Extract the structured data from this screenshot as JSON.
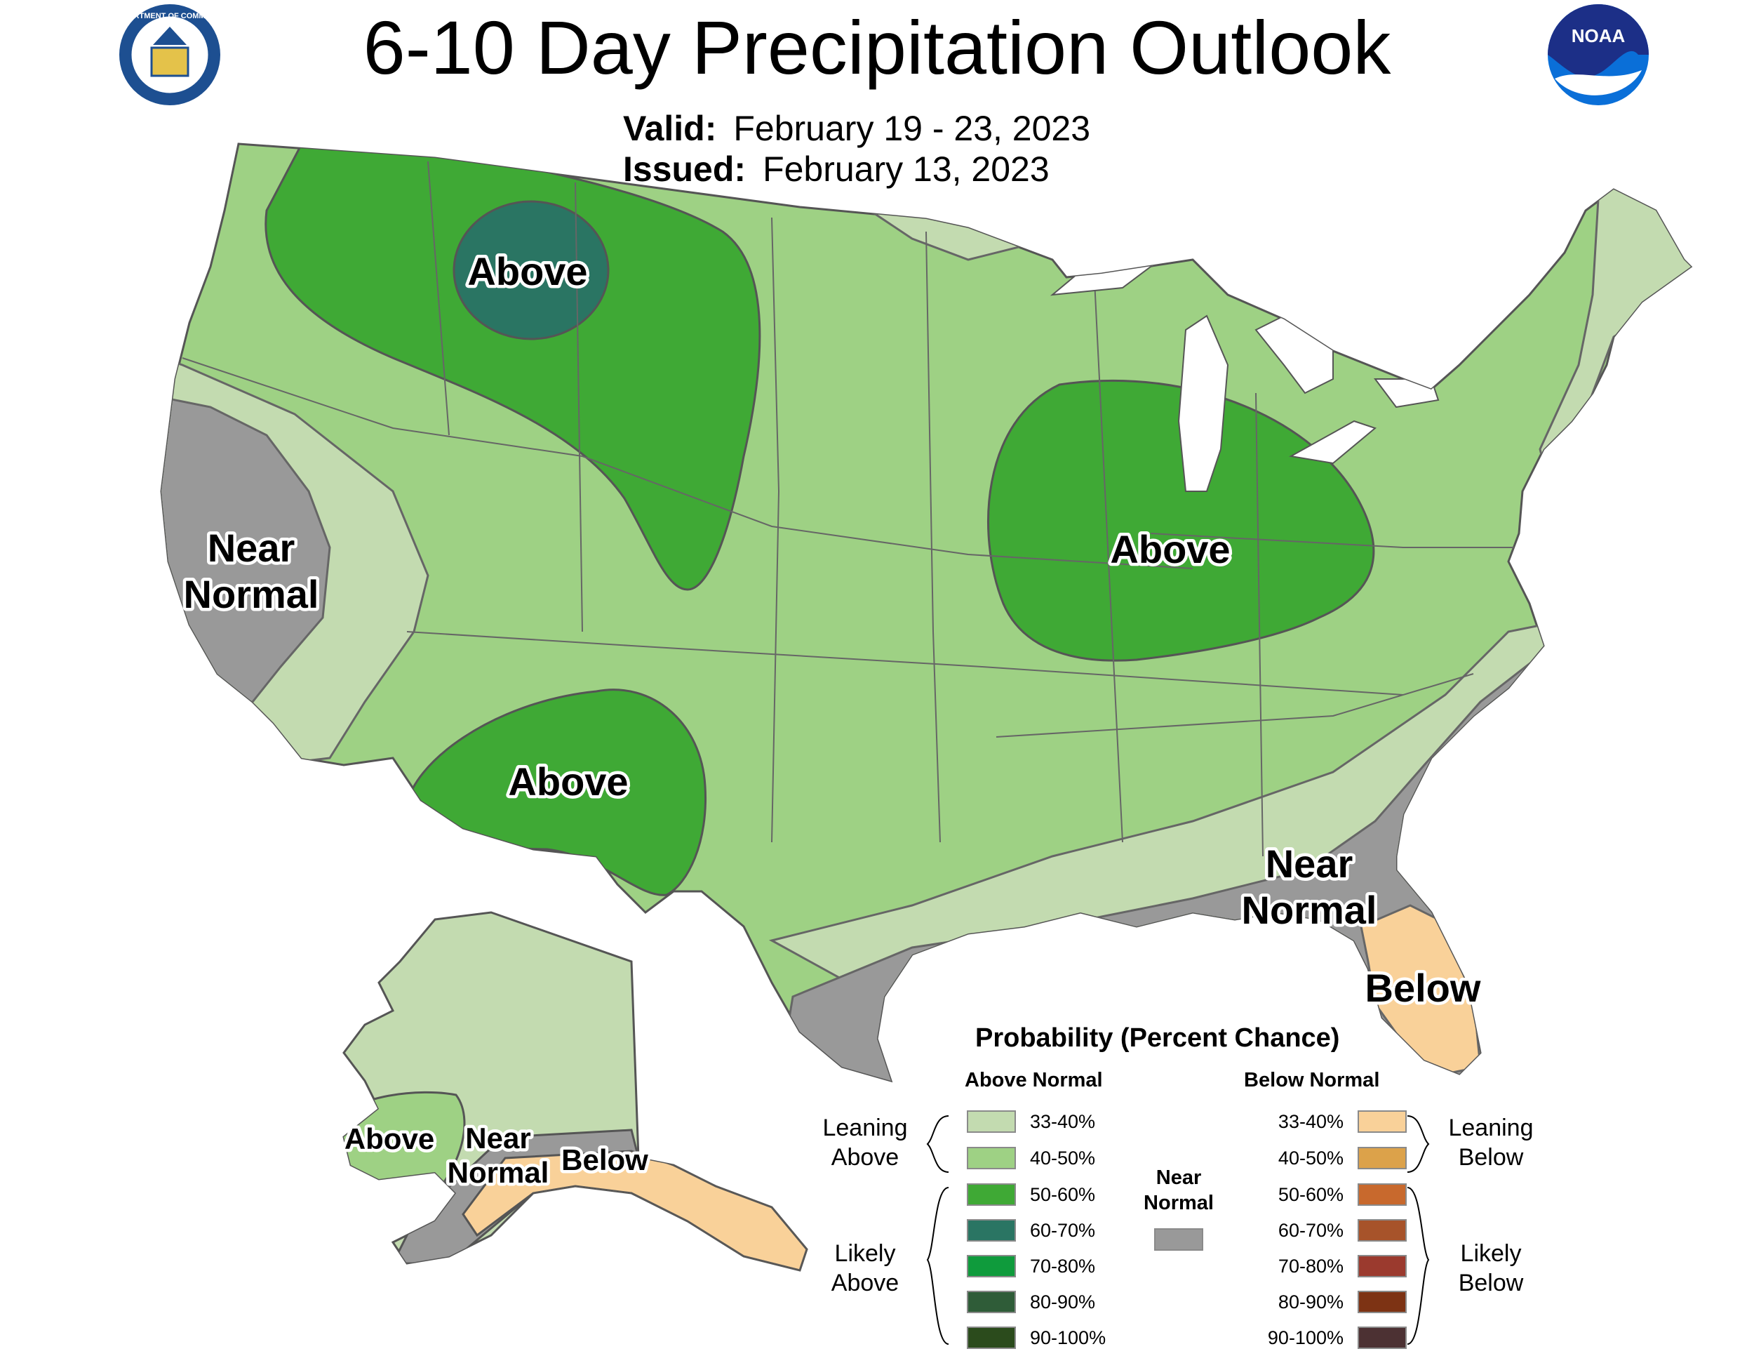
{
  "title": "6-10 Day Precipitation Outlook",
  "valid": {
    "label": "Valid:",
    "value": "February 19 - 23, 2023"
  },
  "issued": {
    "label": "Issued:",
    "value": "February 13, 2023"
  },
  "colors": {
    "near_normal": "#999999",
    "lean_above": "#c3dbb0",
    "above_40_50": "#9ed184",
    "above_50_60": "#3fa935",
    "above_60_70": "#2a7563",
    "below_33_40": "#f9d199",
    "lake_water": "#ffffff",
    "border": "#555555"
  },
  "logos": {
    "left": "department-of-commerce-seal",
    "left_text": "DEPARTMENT OF COMMERCE",
    "right": "noaa-logo",
    "right_text": "NOAA"
  },
  "map_labels": {
    "near_normal_west": [
      "Near",
      "Normal"
    ],
    "above_north": "Above",
    "above_midwest": "Above",
    "above_southwest": "Above",
    "near_normal_southeast": [
      "Near",
      "Normal"
    ],
    "below_florida": "Below",
    "alaska_above": "Above",
    "alaska_near_normal": [
      "Near",
      "Normal"
    ],
    "alaska_below": "Below"
  },
  "legend": {
    "title": "Probability (Percent Chance)",
    "above_title": "Above Normal",
    "below_title": "Below Normal",
    "near_normal_label": [
      "Near",
      "Normal"
    ],
    "near_normal_color": "#999999",
    "leaning_above": [
      "Leaning",
      "Above"
    ],
    "likely_above": [
      "Likely",
      "Above"
    ],
    "leaning_below": [
      "Leaning",
      "Below"
    ],
    "likely_below": [
      "Likely",
      "Below"
    ],
    "above_bins": [
      {
        "label": "33-40%",
        "color": "#c3dbb0"
      },
      {
        "label": "40-50%",
        "color": "#9ed184"
      },
      {
        "label": "50-60%",
        "color": "#3fa935"
      },
      {
        "label": "60-70%",
        "color": "#2a7563"
      },
      {
        "label": "70-80%",
        "color": "#0f9b3c"
      },
      {
        "label": "80-90%",
        "color": "#2f5c38"
      },
      {
        "label": "90-100%",
        "color": "#2b4b1c"
      }
    ],
    "below_bins": [
      {
        "label": "33-40%",
        "color": "#f9d199"
      },
      {
        "label": "40-50%",
        "color": "#dca24a"
      },
      {
        "label": "50-60%",
        "color": "#c8692d"
      },
      {
        "label": "60-70%",
        "color": "#a7532a"
      },
      {
        "label": "70-80%",
        "color": "#9b3a2e"
      },
      {
        "label": "80-90%",
        "color": "#7d3314"
      },
      {
        "label": "90-100%",
        "color": "#4c3133"
      }
    ]
  }
}
